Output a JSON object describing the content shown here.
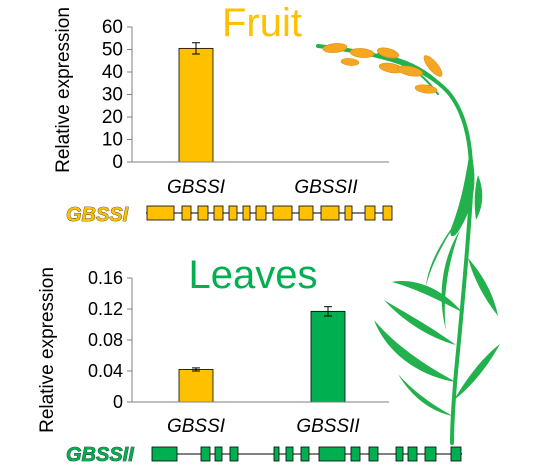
{
  "chart_data": [
    {
      "type": "bar",
      "title": "Fruit",
      "ylabel": "Relative  expression",
      "categories": [
        "GBSSI",
        "GBSSII"
      ],
      "values": [
        50.5,
        0
      ],
      "errors": [
        2.5,
        0
      ],
      "bar_colors": [
        "#ffc000",
        "#ffc000"
      ],
      "ylim": [
        0,
        60
      ],
      "yticks": [
        0,
        10,
        20,
        30,
        40,
        50,
        60
      ],
      "ytick_labels": [
        "0",
        "10",
        "20",
        "30",
        "40",
        "50",
        "60"
      ],
      "grid": false
    },
    {
      "type": "bar",
      "title": "Leaves",
      "ylabel": "Relative expression",
      "categories": [
        "GBSSI",
        "GBSSII"
      ],
      "values": [
        0.042,
        0.117
      ],
      "errors": [
        0.002,
        0.006
      ],
      "bar_colors": [
        "#ffc000",
        "#00b050"
      ],
      "ylim": [
        0,
        0.16
      ],
      "yticks": [
        0,
        0.04,
        0.08,
        0.12,
        0.16
      ],
      "ytick_labels": [
        "0",
        "0.04",
        "0.08",
        "0.12",
        "0.16"
      ],
      "grid": false
    }
  ],
  "gene_models": [
    {
      "name": "GBSSI",
      "color": "#ffc000",
      "exon_count": 13
    },
    {
      "name": "GBSSII",
      "color": "#00b050",
      "exon_count": 14
    }
  ],
  "colors": {
    "fruit_title": "#ffc000",
    "leaves_title": "#00b050",
    "plant_green": "#22b14c",
    "grain_orange": "#f5a623"
  },
  "decoration": {
    "illustration": "rice-plant"
  }
}
